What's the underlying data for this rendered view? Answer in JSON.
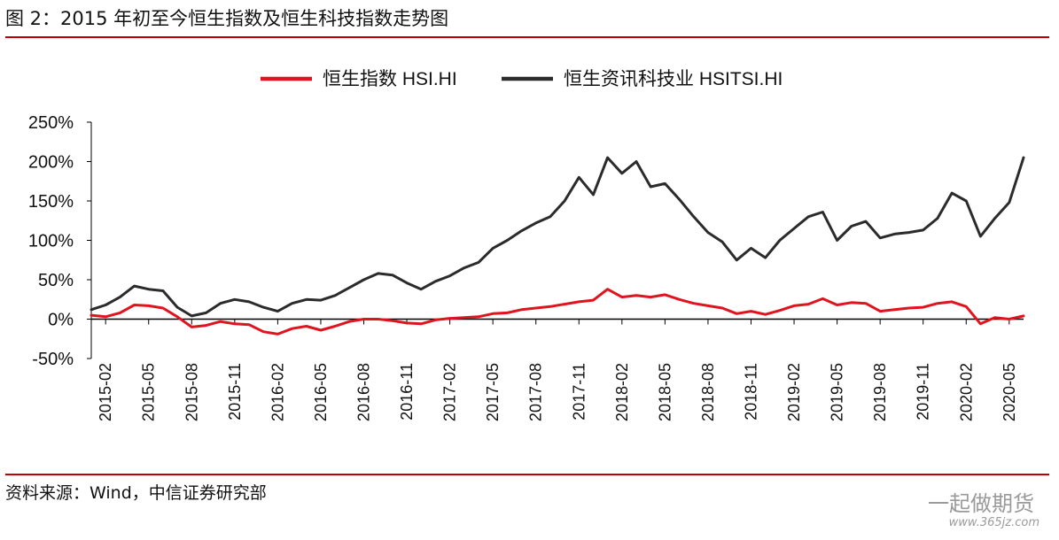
{
  "header": {
    "title": "图 2：2015 年初至今恒生指数及恒生科技指数走势图"
  },
  "footer": {
    "source": "资料来源：Wind，中信证券研究部"
  },
  "watermark": {
    "brand": "一起做期货",
    "url": "www.365jz.com"
  },
  "colors": {
    "rule": "#c00000",
    "hsi": "#e0141e",
    "hsitsi": "#2b2b2b",
    "zero_line": "#000000"
  },
  "chart_data": {
    "type": "line",
    "title": "",
    "xlabel": "",
    "ylabel": "",
    "x_tick_labels": [
      "2015-02",
      "2015-05",
      "2015-08",
      "2015-11",
      "2016-02",
      "2016-05",
      "2016-08",
      "2016-11",
      "2017-02",
      "2017-05",
      "2017-08",
      "2017-11",
      "2018-02",
      "2018-05",
      "2018-08",
      "2018-11",
      "2019-02",
      "2019-05",
      "2019-08",
      "2019-11",
      "2020-02",
      "2020-05"
    ],
    "y_tick_labels": [
      "250%",
      "200%",
      "150%",
      "100%",
      "50%",
      "0%",
      "-50%"
    ],
    "ylim": [
      -50,
      250
    ],
    "y_unit": "%",
    "legend": {
      "placement": "top-center"
    },
    "series": [
      {
        "name": "恒生指数 HSI.HI",
        "color": "#e0141e",
        "points": [
          [
            "2015-01",
            5
          ],
          [
            "2015-02",
            3
          ],
          [
            "2015-03",
            8
          ],
          [
            "2015-04",
            18
          ],
          [
            "2015-05",
            17
          ],
          [
            "2015-06",
            14
          ],
          [
            "2015-07",
            3
          ],
          [
            "2015-08",
            -10
          ],
          [
            "2015-09",
            -8
          ],
          [
            "2015-10",
            -3
          ],
          [
            "2015-11",
            -6
          ],
          [
            "2015-12",
            -7
          ],
          [
            "2016-01",
            -16
          ],
          [
            "2016-02",
            -19
          ],
          [
            "2016-03",
            -12
          ],
          [
            "2016-04",
            -9
          ],
          [
            "2016-05",
            -14
          ],
          [
            "2016-06",
            -9
          ],
          [
            "2016-07",
            -3
          ],
          [
            "2016-08",
            0
          ],
          [
            "2016-09",
            0
          ],
          [
            "2016-10",
            -2
          ],
          [
            "2016-11",
            -5
          ],
          [
            "2016-12",
            -6
          ],
          [
            "2017-01",
            -1
          ],
          [
            "2017-02",
            1
          ],
          [
            "2017-03",
            2
          ],
          [
            "2017-04",
            3
          ],
          [
            "2017-05",
            7
          ],
          [
            "2017-06",
            8
          ],
          [
            "2017-07",
            12
          ],
          [
            "2017-08",
            14
          ],
          [
            "2017-09",
            16
          ],
          [
            "2017-10",
            19
          ],
          [
            "2017-11",
            22
          ],
          [
            "2017-12",
            24
          ],
          [
            "2018-01",
            38
          ],
          [
            "2018-02",
            28
          ],
          [
            "2018-03",
            30
          ],
          [
            "2018-04",
            28
          ],
          [
            "2018-05",
            31
          ],
          [
            "2018-06",
            25
          ],
          [
            "2018-07",
            20
          ],
          [
            "2018-08",
            17
          ],
          [
            "2018-09",
            14
          ],
          [
            "2018-10",
            7
          ],
          [
            "2018-11",
            10
          ],
          [
            "2018-12",
            6
          ],
          [
            "2019-01",
            11
          ],
          [
            "2019-02",
            17
          ],
          [
            "2019-03",
            19
          ],
          [
            "2019-04",
            26
          ],
          [
            "2019-05",
            18
          ],
          [
            "2019-06",
            21
          ],
          [
            "2019-07",
            20
          ],
          [
            "2019-08",
            10
          ],
          [
            "2019-09",
            12
          ],
          [
            "2019-10",
            14
          ],
          [
            "2019-11",
            15
          ],
          [
            "2019-12",
            20
          ],
          [
            "2020-01",
            22
          ],
          [
            "2020-02",
            16
          ],
          [
            "2020-03",
            -6
          ],
          [
            "2020-04",
            2
          ],
          [
            "2020-05",
            0
          ],
          [
            "2020-06",
            4
          ]
        ]
      },
      {
        "name": "恒生资讯科技业 HSITSI.HI",
        "color": "#2b2b2b",
        "points": [
          [
            "2015-01",
            12
          ],
          [
            "2015-02",
            18
          ],
          [
            "2015-03",
            28
          ],
          [
            "2015-04",
            42
          ],
          [
            "2015-05",
            38
          ],
          [
            "2015-06",
            36
          ],
          [
            "2015-07",
            15
          ],
          [
            "2015-08",
            4
          ],
          [
            "2015-09",
            8
          ],
          [
            "2015-10",
            20
          ],
          [
            "2015-11",
            25
          ],
          [
            "2015-12",
            22
          ],
          [
            "2016-01",
            15
          ],
          [
            "2016-02",
            10
          ],
          [
            "2016-03",
            20
          ],
          [
            "2016-04",
            25
          ],
          [
            "2016-05",
            24
          ],
          [
            "2016-06",
            30
          ],
          [
            "2016-07",
            40
          ],
          [
            "2016-08",
            50
          ],
          [
            "2016-09",
            58
          ],
          [
            "2016-10",
            56
          ],
          [
            "2016-11",
            46
          ],
          [
            "2016-12",
            38
          ],
          [
            "2017-01",
            48
          ],
          [
            "2017-02",
            55
          ],
          [
            "2017-03",
            65
          ],
          [
            "2017-04",
            72
          ],
          [
            "2017-05",
            90
          ],
          [
            "2017-06",
            100
          ],
          [
            "2017-07",
            112
          ],
          [
            "2017-08",
            122
          ],
          [
            "2017-09",
            130
          ],
          [
            "2017-10",
            150
          ],
          [
            "2017-11",
            180
          ],
          [
            "2017-12",
            158
          ],
          [
            "2018-01",
            205
          ],
          [
            "2018-02",
            185
          ],
          [
            "2018-03",
            200
          ],
          [
            "2018-04",
            168
          ],
          [
            "2018-05",
            172
          ],
          [
            "2018-06",
            152
          ],
          [
            "2018-07",
            130
          ],
          [
            "2018-08",
            110
          ],
          [
            "2018-09",
            98
          ],
          [
            "2018-10",
            75
          ],
          [
            "2018-11",
            90
          ],
          [
            "2018-12",
            78
          ],
          [
            "2019-01",
            100
          ],
          [
            "2019-02",
            115
          ],
          [
            "2019-03",
            130
          ],
          [
            "2019-04",
            136
          ],
          [
            "2019-05",
            100
          ],
          [
            "2019-06",
            118
          ],
          [
            "2019-07",
            124
          ],
          [
            "2019-08",
            103
          ],
          [
            "2019-09",
            108
          ],
          [
            "2019-10",
            110
          ],
          [
            "2019-11",
            113
          ],
          [
            "2019-12",
            128
          ],
          [
            "2020-01",
            160
          ],
          [
            "2020-02",
            150
          ],
          [
            "2020-03",
            105
          ],
          [
            "2020-04",
            128
          ],
          [
            "2020-05",
            148
          ],
          [
            "2020-06",
            205
          ]
        ]
      }
    ]
  }
}
